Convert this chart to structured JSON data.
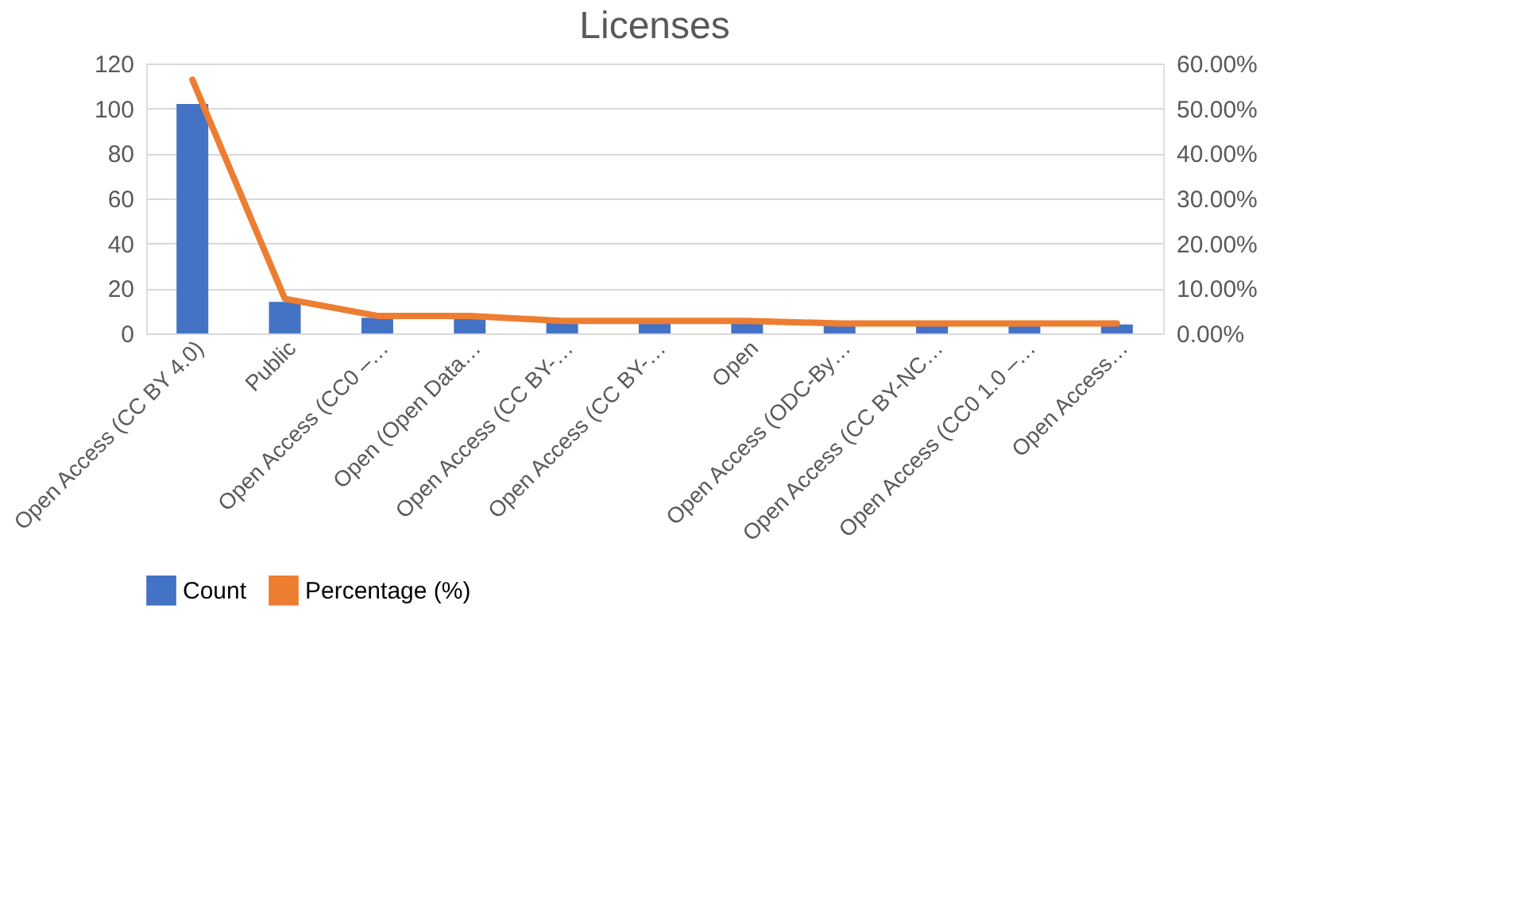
{
  "chart_data": {
    "type": "bar",
    "title": "Licenses",
    "categories": [
      "Open Access (CC BY 4.0)",
      "Public",
      "Open Access (CC0 –…",
      "Open (Open Data…",
      "Open Access (CC BY-…",
      "Open Access (CC BY-…",
      "Open",
      "Open Access (ODC-By…",
      "Open Access (CC BY-NC…",
      "Open Access (CC0 1.0 –…",
      "Open Access…"
    ],
    "series": [
      {
        "name": "Count",
        "color": "#4472c4",
        "values": [
          102,
          14,
          7,
          7,
          5,
          5,
          5,
          4,
          4,
          4,
          4
        ]
      },
      {
        "name": "Percentage (%)",
        "type": "line",
        "axis": "y2",
        "color": "#ed7d31",
        "values": [
          56.4,
          7.7,
          3.9,
          3.9,
          2.8,
          2.8,
          2.8,
          2.2,
          2.2,
          2.2,
          2.2
        ]
      }
    ],
    "ylim": [
      0,
      120
    ],
    "yticks": [
      0,
      20,
      40,
      60,
      80,
      100,
      120
    ],
    "y2lim": [
      0,
      60
    ],
    "y2ticks": [
      {
        "value": 0,
        "label": "0.00%"
      },
      {
        "value": 10,
        "label": "10.00%"
      },
      {
        "value": 20,
        "label": "20.00%"
      },
      {
        "value": 30,
        "label": "30.00%"
      },
      {
        "value": 40,
        "label": "40.00%"
      },
      {
        "value": 50,
        "label": "50.00%"
      },
      {
        "value": 60,
        "label": "60.00%"
      }
    ],
    "grid": "y",
    "legend": "bottom",
    "line_style": "solid",
    "marker": "none"
  }
}
